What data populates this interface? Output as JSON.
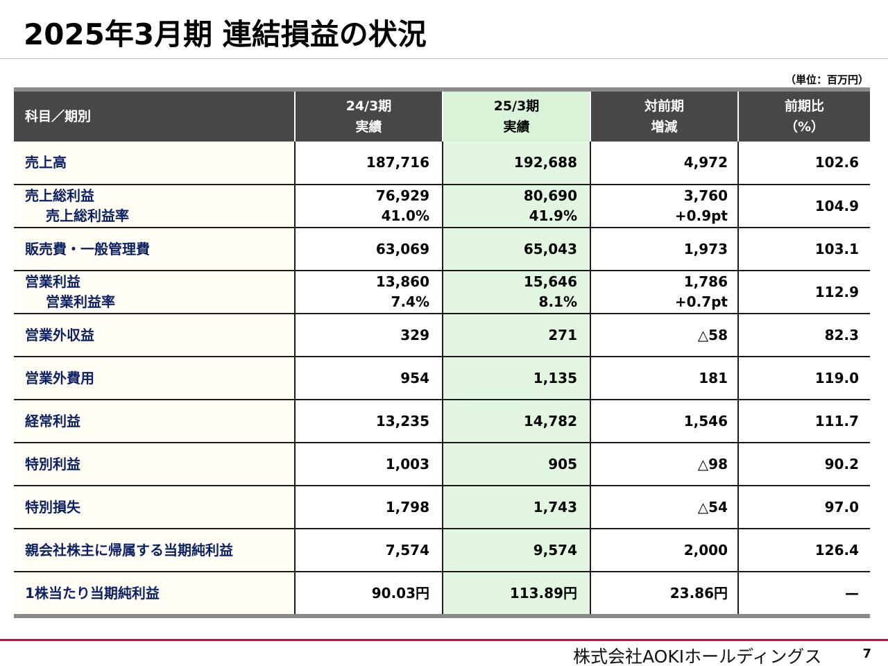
{
  "title": "2025年3月期 連結損益の状況",
  "unit": "（単位：百万円）",
  "headers": [
    {
      "line1": "科目／期別",
      "line2": ""
    },
    {
      "line1": "24/3期",
      "line2": "実績"
    },
    {
      "line1": "25/3期",
      "line2": "実績"
    },
    {
      "line1": "対前期",
      "line2": "増減"
    },
    {
      "line1": "前期比",
      "line2": "（%）"
    }
  ],
  "rows": [
    {
      "label": "売上高",
      "sublabel": "",
      "prev": "187,716",
      "prev_sub": "",
      "curr": "192,688",
      "curr_sub": "",
      "diff": "4,972",
      "diff_sub": "",
      "ratio": "102.6"
    },
    {
      "label": "売上総利益",
      "sublabel": "売上総利益率",
      "prev": "76,929",
      "prev_sub": "41.0%",
      "curr": "80,690",
      "curr_sub": "41.9%",
      "diff": "3,760",
      "diff_sub": "+0.9pt",
      "ratio": "104.9"
    },
    {
      "label": "販売費・一般管理費",
      "sublabel": "",
      "prev": "63,069",
      "prev_sub": "",
      "curr": "65,043",
      "curr_sub": "",
      "diff": "1,973",
      "diff_sub": "",
      "ratio": "103.1"
    },
    {
      "label": "営業利益",
      "sublabel": "営業利益率",
      "prev": "13,860",
      "prev_sub": "7.4%",
      "curr": "15,646",
      "curr_sub": "8.1%",
      "diff": "1,786",
      "diff_sub": "+0.7pt",
      "ratio": "112.9"
    },
    {
      "label": "営業外収益",
      "sublabel": "",
      "prev": "329",
      "prev_sub": "",
      "curr": "271",
      "curr_sub": "",
      "diff": "△58",
      "diff_sub": "",
      "ratio": "82.3"
    },
    {
      "label": "営業外費用",
      "sublabel": "",
      "prev": "954",
      "prev_sub": "",
      "curr": "1,135",
      "curr_sub": "",
      "diff": "181",
      "diff_sub": "",
      "ratio": "119.0"
    },
    {
      "label": "経常利益",
      "sublabel": "",
      "prev": "13,235",
      "prev_sub": "",
      "curr": "14,782",
      "curr_sub": "",
      "diff": "1,546",
      "diff_sub": "",
      "ratio": "111.7"
    },
    {
      "label": "特別利益",
      "sublabel": "",
      "prev": "1,003",
      "prev_sub": "",
      "curr": "905",
      "curr_sub": "",
      "diff": "△98",
      "diff_sub": "",
      "ratio": "90.2"
    },
    {
      "label": "特別損失",
      "sublabel": "",
      "prev": "1,798",
      "prev_sub": "",
      "curr": "1,743",
      "curr_sub": "",
      "diff": "△54",
      "diff_sub": "",
      "ratio": "97.0"
    },
    {
      "label": "親会社株主に帰属する当期純利益",
      "sublabel": "",
      "prev": "7,574",
      "prev_sub": "",
      "curr": "9,574",
      "curr_sub": "",
      "diff": "2,000",
      "diff_sub": "",
      "ratio": "126.4"
    },
    {
      "label": "1株当たり当期純利益",
      "sublabel": "",
      "prev": "90.03円",
      "prev_sub": "",
      "curr": "113.89円",
      "curr_sub": "",
      "diff": "23.86円",
      "diff_sub": "",
      "ratio": "—"
    }
  ],
  "footer": {
    "company": "株式会社AOKIホールディングス",
    "page": "7"
  },
  "colors": {
    "header_bg": "#474747",
    "highlight_column": "#e2f6e2",
    "label_bg": "#fffdf4",
    "label_text": "#0b1f63",
    "footer_rule": "#c4103c"
  }
}
